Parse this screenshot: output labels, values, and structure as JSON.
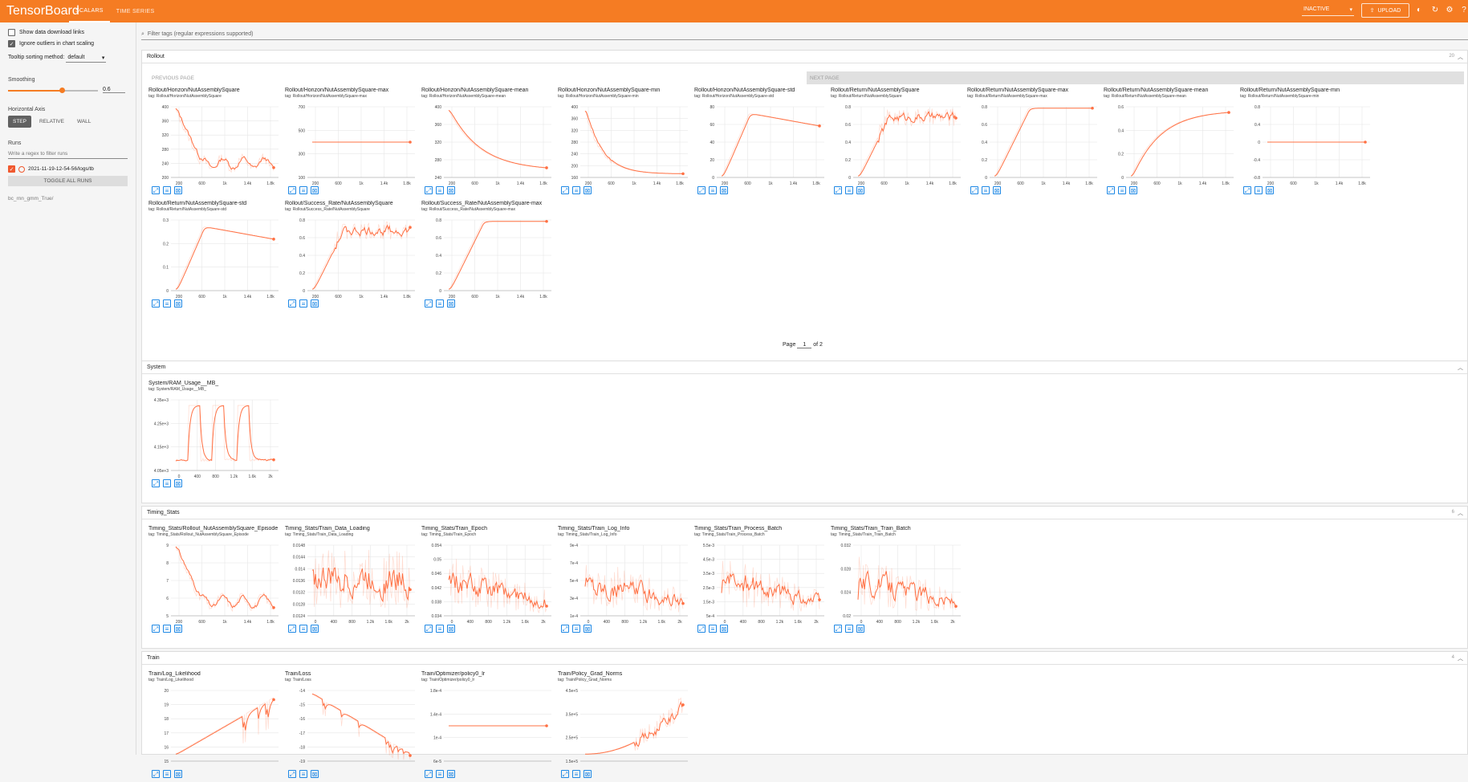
{
  "app": {
    "brand": "TensorBoard",
    "tabs": [
      {
        "label": "SCALARS",
        "active": true
      },
      {
        "label": "TIME SERIES",
        "active": false
      }
    ],
    "status": "INACTIVE",
    "upload_label": "UPLOAD",
    "accent": "#f57c23"
  },
  "sidebar": {
    "show_download": "Show data download links",
    "ignore_outliers": "Ignore outliers in chart scaling",
    "tooltip_label": "Tooltip sorting method:",
    "tooltip_value": "default",
    "smoothing_label": "Smoothing",
    "smoothing_value": "0.6",
    "smoothing_fraction": 0.6,
    "axis_label": "Horizontal Axis",
    "axis_options": [
      "STEP",
      "RELATIVE",
      "WALL"
    ],
    "runs_label": "Runs",
    "runs_filter_placeholder": "Write a regex to filter runs",
    "run_name": "2021-11-19-12-54-56/logs/tb",
    "toggle_label": "TOGGLE ALL RUNS",
    "run_note": "bc_rnn_gmm_True/"
  },
  "filter_placeholder": "Filter tags (regular expressions supported)",
  "pager": {
    "prev": "PREVIOUS PAGE",
    "next": "NEXT PAGE",
    "page_prefix": "Page",
    "page_value": "1",
    "page_suffix": "of 2"
  },
  "sections": {
    "rollout": {
      "title": "Rollout",
      "count": "20"
    },
    "system": {
      "title": "System"
    },
    "timing": {
      "title": "Timing_Stats",
      "count": "6"
    },
    "train": {
      "title": "Train",
      "count": "4"
    }
  },
  "cards": {
    "rollout": [
      {
        "title": "Rollout/Horizon/NutAssemblySquare",
        "tag": "tag: Rollout/Horizon/NutAssemblySquare",
        "yticks": [
          "400",
          "360",
          "320",
          "280",
          "240",
          "200"
        ],
        "xticks": [
          "200",
          "600",
          "1k",
          "1.4k",
          "1.8k"
        ],
        "shape": "noisy-decay"
      },
      {
        "title": "Rollout/Horizon/NutAssemblySquare-max",
        "tag": "tag: Rollout/Horizon/NutAssemblySquare-max",
        "yticks": [
          "700",
          "500",
          "300",
          "100"
        ],
        "xticks": [
          "200",
          "600",
          "1k",
          "1.4k",
          "1.8k"
        ],
        "shape": "flat-mid"
      },
      {
        "title": "Rollout/Horizon/NutAssemblySquare-mean",
        "tag": "tag: Rollout/Horizon/NutAssemblySquare-mean",
        "yticks": [
          "400",
          "360",
          "320",
          "280",
          "240"
        ],
        "xticks": [
          "200",
          "600",
          "1k",
          "1.4k",
          "1.8k"
        ],
        "shape": "smooth-decay"
      },
      {
        "title": "Rollout/Horizon/NutAssemblySquare-min",
        "tag": "tag: Rollout/Horizon/NutAssemblySquare-min",
        "yticks": [
          "400",
          "360",
          "320",
          "280",
          "240",
          "200",
          "160"
        ],
        "xticks": [
          "200",
          "600",
          "1k",
          "1.4k",
          "1.8k"
        ],
        "shape": "sharp-decay"
      },
      {
        "title": "Rollout/Horizon/NutAssemblySquare-std",
        "tag": "tag: Rollout/Horizon/NutAssemblySquare-std",
        "yticks": [
          "80",
          "60",
          "40",
          "20",
          "0"
        ],
        "xticks": [
          "200",
          "600",
          "1k",
          "1.4k",
          "1.8k"
        ],
        "shape": "rise-fall"
      },
      {
        "title": "Rollout/Return/NutAssemblySquare",
        "tag": "tag: Rollout/Return/NutAssemblySquare",
        "yticks": [
          "0.8",
          "0.6",
          "0.4",
          "0.2",
          "0"
        ],
        "xticks": [
          "200",
          "600",
          "1k",
          "1.4k",
          "1.8k"
        ],
        "shape": "noisy-rise"
      },
      {
        "title": "Rollout/Return/NutAssemblySquare-max",
        "tag": "tag: Rollout/Return/NutAssemblySquare-max",
        "yticks": [
          "0.8",
          "0.6",
          "0.4",
          "0.2",
          "0"
        ],
        "xticks": [
          "200",
          "600",
          "1k",
          "1.4k",
          "1.8k"
        ],
        "shape": "fast-rise"
      },
      {
        "title": "Rollout/Return/NutAssemblySquare-mean",
        "tag": "tag: Rollout/Return/NutAssemblySquare-mean",
        "yticks": [
          "0.6",
          "0.4",
          "0.2",
          "0"
        ],
        "xticks": [
          "200",
          "600",
          "1k",
          "1.4k",
          "1.8k"
        ],
        "shape": "slow-rise"
      },
      {
        "title": "Rollout/Return/NutAssemblySquare-min",
        "tag": "tag: Rollout/Return/NutAssemblySquare-min",
        "yticks": [
          "0.8",
          "0.4",
          "0",
          "-0.4",
          "-0.8"
        ],
        "xticks": [
          "200",
          "600",
          "1k",
          "1.4k",
          "1.8k"
        ],
        "shape": "flat-mid"
      },
      {
        "title": "Rollout/Return/NutAssemblySquare-std",
        "tag": "tag: Rollout/Return/NutAssemblySquare-std",
        "yticks": [
          "0.3",
          "0.2",
          "0.1",
          "0"
        ],
        "xticks": [
          "200",
          "600",
          "1k",
          "1.4k",
          "1.8k"
        ],
        "shape": "rise-fall"
      },
      {
        "title": "Rollout/Success_Rate/NutAssemblySquare",
        "tag": "tag: Rollout/Success_Rate/NutAssemblySquare",
        "yticks": [
          "0.8",
          "0.6",
          "0.4",
          "0.2",
          "0"
        ],
        "xticks": [
          "200",
          "600",
          "1k",
          "1.4k",
          "1.8k"
        ],
        "shape": "noisy-rise"
      },
      {
        "title": "Rollout/Success_Rate/NutAssemblySquare-max",
        "tag": "tag: Rollout/Success_Rate/NutAssemblySquare-max",
        "yticks": [
          "0.8",
          "0.6",
          "0.4",
          "0.2",
          "0"
        ],
        "xticks": [
          "200",
          "600",
          "1k",
          "1.4k",
          "1.8k"
        ],
        "shape": "fast-rise"
      }
    ],
    "system": [
      {
        "title": "System/RAM_Usage__MB_",
        "tag": "tag: System/RAM_Usage__MB_",
        "yticks": [
          "4.35e+3",
          "4.25e+3",
          "4.15e+3",
          "4.05e+3"
        ],
        "xticks": [
          "0",
          "400",
          "800",
          "1.2k",
          "1.6k",
          "2k"
        ],
        "shape": "spikes"
      }
    ],
    "timing": [
      {
        "title": "Timing_Stats/Rollout_NutAssemblySquare_Episode",
        "tag": "tag: Timing_Stats/Rollout_NutAssemblySquare_Episode",
        "yticks": [
          "9",
          "8",
          "7",
          "6",
          "5"
        ],
        "xticks": [
          "200",
          "600",
          "1k",
          "1.4k",
          "1.8k"
        ],
        "shape": "noisy-decay"
      },
      {
        "title": "Timing_Stats/Train_Data_Loading",
        "tag": "tag: Timing_Stats/Train_Data_Loading",
        "yticks": [
          "0.0148",
          "0.0144",
          "0.014",
          "0.0136",
          "0.0132",
          "0.0128",
          "0.0124"
        ],
        "xticks": [
          "0",
          "400",
          "800",
          "1.2k",
          "1.6k",
          "2k"
        ],
        "shape": "dense-noise"
      },
      {
        "title": "Timing_Stats/Train_Epoch",
        "tag": "tag: Timing_Stats/Train_Epoch",
        "yticks": [
          "0.054",
          "0.05",
          "0.046",
          "0.042",
          "0.038",
          "0.034"
        ],
        "xticks": [
          "0",
          "400",
          "800",
          "1.2k",
          "1.6k",
          "2k"
        ],
        "shape": "noise-decay"
      },
      {
        "title": "Timing_Stats/Train_Log_Info",
        "tag": "tag: Timing_Stats/Train_Log_Info",
        "yticks": [
          "9e-4",
          "7e-4",
          "5e-4",
          "3e-4",
          "1e-4"
        ],
        "xticks": [
          "0",
          "400",
          "800",
          "1.2k",
          "1.6k",
          "2k"
        ],
        "shape": "noise-decay"
      },
      {
        "title": "Timing_Stats/Train_Process_Batch",
        "tag": "tag: Timing_Stats/Train_Process_Batch",
        "yticks": [
          "5.5e-3",
          "4.5e-3",
          "3.5e-3",
          "2.5e-3",
          "1.5e-3",
          "5e-4"
        ],
        "xticks": [
          "0",
          "400",
          "800",
          "1.2k",
          "1.6k",
          "2k"
        ],
        "shape": "noise-decay"
      },
      {
        "title": "Timing_Stats/Train_Train_Batch",
        "tag": "tag: Timing_Stats/Train_Train_Batch",
        "yticks": [
          "0.032",
          "0.028",
          "0.024",
          "0.02"
        ],
        "xticks": [
          "0",
          "400",
          "800",
          "1.2k",
          "1.6k",
          "2k"
        ],
        "shape": "noise-decay"
      }
    ],
    "train": [
      {
        "title": "Train/Log_Likelihood",
        "tag": "tag: Train/Log_Likelihood",
        "yticks": [
          "20",
          "19",
          "18",
          "17",
          "16",
          "15"
        ],
        "xticks": [],
        "shape": "log-rise"
      },
      {
        "title": "Train/Loss",
        "tag": "tag: Train/Loss",
        "yticks": [
          "-14",
          "-15",
          "-16",
          "-17",
          "-18",
          "-19"
        ],
        "xticks": [],
        "shape": "loss-decay"
      },
      {
        "title": "Train/Optimizer/policy0_lr",
        "tag": "tag: Train/Optimizer/policy0_lr",
        "yticks": [
          "1.8e-4",
          "1.4e-4",
          "1e-4",
          "6e-5"
        ],
        "xticks": [],
        "shape": "flat-mid"
      },
      {
        "title": "Train/Policy_Grad_Norms",
        "tag": "tag: Train/Policy_Grad_Norms",
        "yticks": [
          "4.5e+5",
          "3.5e+5",
          "2.5e+5",
          "1.5e+5"
        ],
        "xticks": [],
        "shape": "grad-rise"
      }
    ]
  }
}
